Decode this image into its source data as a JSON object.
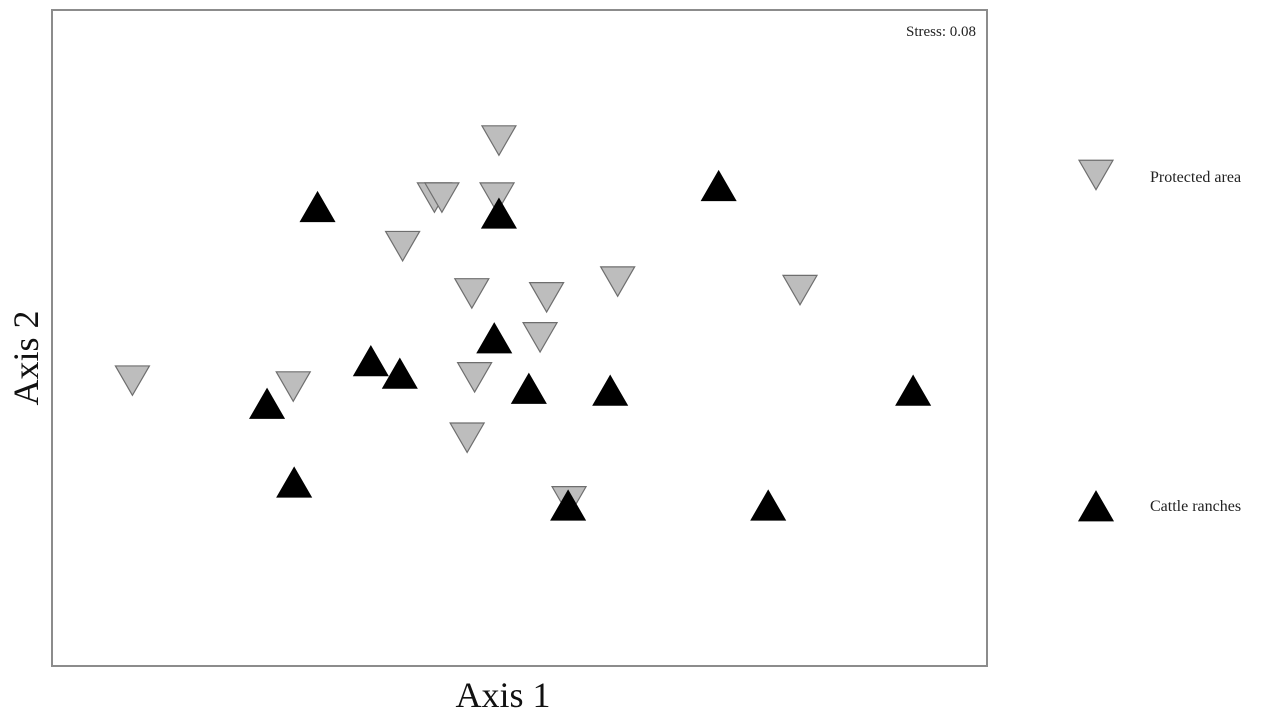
{
  "chart_data": {
    "type": "scatter",
    "title": "",
    "xlabel": "Axis 1",
    "ylabel": "Axis 2",
    "annotation": "Stress: 0.08",
    "grid": false,
    "legend_position": "right",
    "xlim": [
      0,
      100
    ],
    "ylim": [
      0,
      100
    ],
    "series": [
      {
        "name": "Protected area",
        "marker": "triangle-down",
        "color": "#bdbdbd",
        "points": [
          {
            "x": 8.6,
            "y": 43.5
          },
          {
            "x": 25.8,
            "y": 42.6
          },
          {
            "x": 37.5,
            "y": 64.0
          },
          {
            "x": 40.9,
            "y": 71.4
          },
          {
            "x": 41.7,
            "y": 71.4
          },
          {
            "x": 47.6,
            "y": 71.4
          },
          {
            "x": 44.9,
            "y": 56.8
          },
          {
            "x": 47.8,
            "y": 80.1
          },
          {
            "x": 52.9,
            "y": 56.2
          },
          {
            "x": 52.2,
            "y": 50.1
          },
          {
            "x": 45.2,
            "y": 44.0
          },
          {
            "x": 44.4,
            "y": 34.8
          },
          {
            "x": 55.3,
            "y": 25.1
          },
          {
            "x": 60.5,
            "y": 58.6
          },
          {
            "x": 80.0,
            "y": 57.3
          }
        ]
      },
      {
        "name": "Cattle ranches",
        "marker": "triangle-up",
        "color": "#000000",
        "points": [
          {
            "x": 28.4,
            "y": 70.0
          },
          {
            "x": 47.8,
            "y": 69.0
          },
          {
            "x": 71.3,
            "y": 73.2
          },
          {
            "x": 47.3,
            "y": 50.0
          },
          {
            "x": 34.1,
            "y": 46.5
          },
          {
            "x": 37.2,
            "y": 44.6
          },
          {
            "x": 23.0,
            "y": 40.0
          },
          {
            "x": 25.9,
            "y": 28.0
          },
          {
            "x": 51.0,
            "y": 42.3
          },
          {
            "x": 59.7,
            "y": 42.0
          },
          {
            "x": 92.1,
            "y": 42.0
          },
          {
            "x": 55.2,
            "y": 24.5
          },
          {
            "x": 76.6,
            "y": 24.5
          }
        ]
      }
    ]
  },
  "colors": {
    "frame": "#8c8c8c",
    "background": "#ffffff"
  }
}
